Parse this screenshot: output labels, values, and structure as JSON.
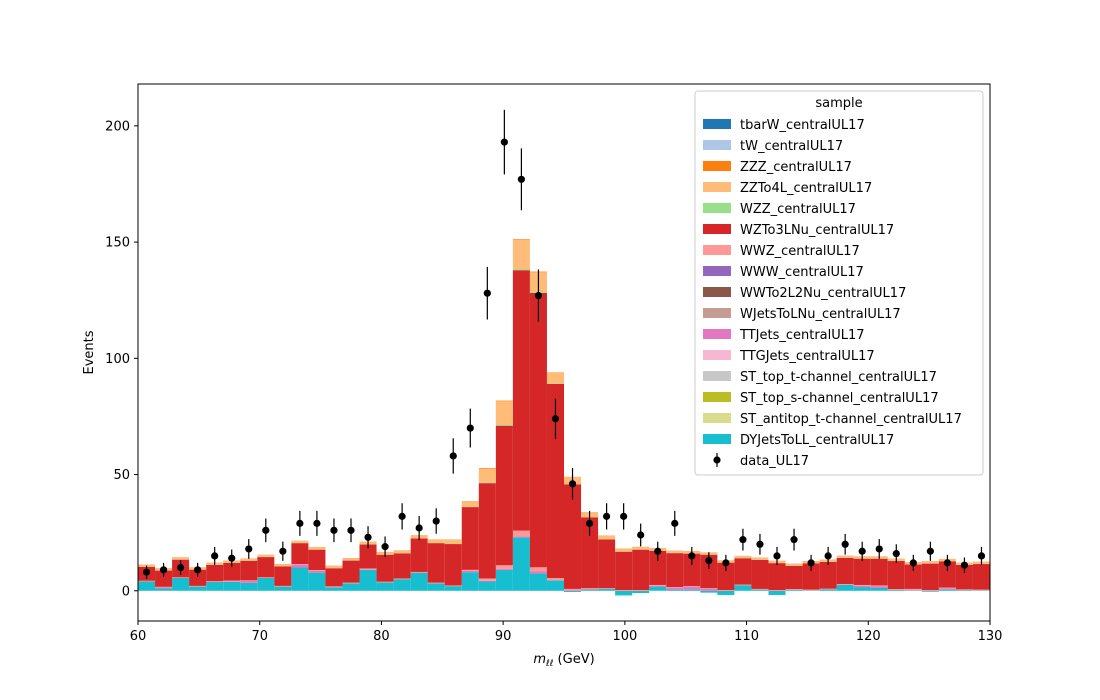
{
  "chart_data": {
    "type": "bar",
    "stacked": true,
    "xlabel": "m_ll (GeV)",
    "xlabel_main": "m",
    "xlabel_sub": "ℓℓ",
    "xlabel_unit": " (GeV)",
    "ylabel": "Events",
    "xlim": [
      60,
      130
    ],
    "ylim": [
      -13,
      218
    ],
    "xticks": [
      60,
      70,
      80,
      90,
      100,
      110,
      120,
      130
    ],
    "yticks": [
      0,
      50,
      100,
      150,
      200
    ],
    "legend": {
      "title": "sample",
      "placement": "top-right"
    },
    "bin_edges": [
      60.0,
      61.4,
      62.8,
      64.2,
      65.6,
      67.0,
      68.4,
      69.8,
      71.2,
      72.6,
      74.0,
      75.4,
      76.8,
      78.2,
      79.6,
      81.0,
      82.4,
      83.8,
      85.2,
      86.6,
      88.0,
      89.4,
      90.8,
      92.2,
      93.6,
      95.0,
      96.4,
      97.8,
      99.2,
      100.6,
      102.0,
      103.4,
      104.8,
      106.2,
      107.6,
      109.0,
      110.4,
      111.8,
      113.2,
      114.6,
      116.0,
      117.4,
      118.8,
      120.2,
      121.6,
      123.0,
      124.4,
      125.8,
      127.2,
      128.6,
      130.0
    ],
    "series": [
      {
        "name": "tbarW_centralUL17",
        "color": "#1f77b4",
        "values": [
          0,
          0,
          0,
          0,
          0,
          0,
          0,
          0,
          0,
          0,
          0,
          0,
          0,
          0,
          0,
          0,
          0,
          0,
          0,
          0,
          0,
          0,
          0,
          0,
          0,
          0,
          0,
          0,
          0,
          0,
          0,
          0,
          0,
          0,
          0,
          0,
          0,
          0,
          0,
          0,
          0,
          0,
          0,
          0,
          0,
          0,
          0,
          0,
          0,
          0
        ]
      },
      {
        "name": "tW_centralUL17",
        "color": "#aec7e8",
        "values": [
          0,
          0,
          0,
          0,
          0,
          0,
          0,
          0,
          0,
          0,
          0,
          0,
          0,
          0,
          0,
          0,
          0,
          0,
          0,
          0,
          0,
          0,
          0,
          0,
          0,
          0,
          0,
          0,
          0,
          0,
          0,
          0,
          0,
          0,
          0,
          0,
          0,
          0,
          0,
          0,
          0,
          0,
          0,
          0,
          0,
          0,
          0,
          0,
          0,
          0
        ]
      },
      {
        "name": "ZZZ_centralUL17",
        "color": "#ff7f0e",
        "values": [
          0.1,
          0.1,
          0.1,
          0.1,
          0.1,
          0.1,
          0.1,
          0.1,
          0.1,
          0.1,
          0.1,
          0.1,
          0.1,
          0.1,
          0.1,
          0.1,
          0.1,
          0.1,
          0.1,
          0.1,
          0.2,
          0.3,
          0.3,
          0.3,
          0.2,
          0.1,
          0.1,
          0.1,
          0.1,
          0.1,
          0.1,
          0.1,
          0.1,
          0.1,
          0.1,
          0.1,
          0.1,
          0.1,
          0.1,
          0.1,
          0.1,
          0.1,
          0.1,
          0.1,
          0.1,
          0.1,
          0.1,
          0.1,
          0.1,
          0.1
        ]
      },
      {
        "name": "ZZTo4L_centralUL17",
        "color": "#ffbb78",
        "values": [
          0.8,
          0.8,
          0.8,
          0.8,
          0.8,
          0.8,
          0.8,
          0.8,
          0.8,
          0.8,
          0.9,
          0.9,
          0.9,
          1.0,
          1.0,
          1.1,
          1.2,
          1.4,
          1.8,
          2.4,
          6.0,
          10.0,
          12.5,
          8.5,
          4.5,
          3.0,
          2.0,
          1.5,
          1.2,
          1.0,
          1.0,
          0.9,
          0.9,
          0.8,
          0.8,
          0.8,
          0.8,
          0.8,
          0.8,
          0.8,
          0.8,
          0.8,
          0.8,
          0.8,
          0.8,
          0.8,
          0.8,
          0.8,
          0.8,
          0.8
        ]
      },
      {
        "name": "WZZ_centralUL17",
        "color": "#98df8a",
        "values": [
          0.1,
          0.1,
          0.1,
          0.1,
          0.1,
          0.1,
          0.1,
          0.1,
          0.1,
          0.1,
          0.1,
          0.1,
          0.1,
          0.1,
          0.1,
          0.1,
          0.1,
          0.1,
          0.1,
          0.1,
          0.3,
          0.5,
          0.5,
          0.4,
          0.2,
          0.1,
          0.1,
          0.1,
          0.1,
          0.1,
          0.1,
          0.1,
          0.1,
          0.1,
          0.1,
          0.1,
          0.1,
          0.1,
          0.1,
          0.1,
          0.1,
          0.1,
          0.1,
          0.1,
          0.1,
          0.1,
          0.1,
          0.1,
          0.1,
          0.1
        ]
      },
      {
        "name": "WZTo3LNu_centralUL17",
        "color": "#d62728",
        "values": [
          6.0,
          7.0,
          7.6,
          7.0,
          7.0,
          7.6,
          8.4,
          8.7,
          8.4,
          9.0,
          8.8,
          7.8,
          9.5,
          10.3,
          11.6,
          10.8,
          14.4,
          17.0,
          17.8,
          27.0,
          41.0,
          60.0,
          112.0,
          118.0,
          83.5,
          45.0,
          30.5,
          21.0,
          16.5,
          17.4,
          14.7,
          14.6,
          14.0,
          14.4,
          11.8,
          11.3,
          12.5,
          11.6,
          10.0,
          11.3,
          11.5,
          11.2,
          11.3,
          11.5,
          12.1,
          10.5,
          11.4,
          11.3,
          10.5,
          11.0
        ]
      },
      {
        "name": "WWZ_centralUL17",
        "color": "#ff9896",
        "values": [
          0.3,
          0.3,
          0.3,
          0.3,
          0.3,
          0.3,
          0.3,
          0.3,
          0.3,
          0.3,
          0.3,
          0.4,
          0.3,
          0.3,
          0.3,
          0.3,
          0.3,
          0.3,
          0.3,
          0.4,
          1.0,
          1.5,
          2.5,
          1.8,
          1.0,
          0.5,
          0.3,
          0.3,
          0.3,
          0.3,
          0.3,
          0.3,
          0.3,
          0.3,
          0.3,
          0.3,
          0.3,
          0.3,
          0.3,
          0.3,
          0.3,
          0.3,
          0.3,
          0.3,
          0.3,
          0.3,
          0.3,
          0.3,
          0.3,
          0.3
        ]
      },
      {
        "name": "WWW_centralUL17",
        "color": "#9467bd",
        "values": [
          0,
          0,
          0,
          0,
          0,
          0,
          0,
          0,
          0,
          0,
          0,
          0,
          0,
          0,
          0,
          0,
          0,
          0,
          0,
          0,
          0,
          0,
          0,
          0,
          0,
          0,
          0,
          0,
          0,
          0,
          0,
          0,
          0,
          0,
          0,
          0,
          0,
          0,
          0,
          0,
          0,
          0,
          0,
          0,
          0,
          0,
          0,
          0,
          0,
          0
        ]
      },
      {
        "name": "WWTo2L2Nu_centralUL17",
        "color": "#8c564b",
        "values": [
          0,
          0,
          0,
          0,
          0,
          0,
          0,
          0,
          0,
          0,
          0,
          0,
          0,
          0,
          0,
          0,
          0,
          0,
          0,
          0,
          0,
          0,
          0,
          0,
          0,
          0,
          0,
          0,
          0,
          0,
          0,
          0,
          0,
          0,
          0,
          0,
          0,
          0,
          0,
          0,
          0,
          0,
          0,
          0,
          0,
          0,
          0,
          0,
          0,
          0
        ]
      },
      {
        "name": "WJetsToLNu_centralUL17",
        "color": "#c49c94",
        "values": [
          0,
          0,
          0,
          0,
          0,
          0,
          0,
          0,
          0,
          0,
          0,
          0,
          0,
          0,
          0,
          0,
          0,
          0,
          0,
          0,
          0,
          0,
          0,
          0,
          0,
          0,
          0,
          0,
          0,
          0,
          0,
          0,
          0,
          0,
          0,
          0,
          0,
          0,
          0,
          0,
          0,
          0,
          0,
          0,
          0,
          0,
          0,
          0,
          0,
          0
        ]
      },
      {
        "name": "TTJets_centralUL17",
        "color": "#e377c2",
        "values": [
          0,
          0.4,
          0,
          0,
          0,
          0.3,
          0.8,
          0,
          0,
          1.2,
          0.8,
          0,
          0,
          0.3,
          0,
          0,
          0,
          0,
          0,
          0.6,
          0.3,
          0.5,
          0.4,
          0.8,
          0,
          0.3,
          0.3,
          0,
          0,
          0,
          0.4,
          0.8,
          1.2,
          0.8,
          0,
          0,
          0,
          0,
          0,
          0,
          0,
          0,
          0.6,
          0.8,
          0,
          0.3,
          0,
          0.6,
          0,
          0
        ]
      },
      {
        "name": "TTGJets_centralUL17",
        "color": "#f7b6d2",
        "values": [
          0,
          0,
          0,
          0,
          0,
          0,
          0,
          0,
          0,
          0,
          0,
          0,
          0,
          0,
          0,
          0,
          0,
          0,
          0,
          0,
          0,
          0,
          0,
          0,
          0,
          0,
          0,
          0,
          0,
          0,
          0,
          0,
          0,
          0,
          0,
          0,
          0,
          0,
          0,
          0,
          0,
          0,
          0,
          0,
          0,
          0,
          0,
          0,
          0,
          0
        ]
      },
      {
        "name": "ST_top_t-channel_centralUL17",
        "color": "#c7c7c7",
        "values": [
          0,
          0,
          0,
          0,
          0,
          0,
          0,
          0,
          0,
          0,
          0,
          0,
          0,
          0,
          0,
          0,
          0,
          0,
          0,
          0,
          0,
          0,
          0,
          0,
          0,
          0,
          0,
          0,
          0,
          0,
          0,
          0,
          0,
          0,
          0,
          0,
          0,
          0,
          0,
          0,
          0,
          0,
          0,
          0,
          0,
          0,
          0,
          0,
          0,
          0
        ]
      },
      {
        "name": "ST_top_s-channel_centralUL17",
        "color": "#bcbd22",
        "values": [
          0,
          0,
          0,
          0,
          0,
          0,
          0,
          0,
          0,
          0,
          0,
          0,
          0,
          0,
          0,
          0,
          0,
          0,
          0,
          0,
          0,
          0,
          0,
          0,
          0,
          0,
          0,
          0,
          0,
          0,
          0,
          0,
          0,
          0,
          0,
          0,
          0,
          0,
          0,
          0,
          0,
          0,
          0,
          0,
          0,
          0,
          0,
          0,
          0,
          0
        ]
      },
      {
        "name": "ST_antitop_t-channel_centralUL17",
        "color": "#dbdb8d",
        "values": [
          0,
          0,
          0,
          0,
          0,
          0,
          0,
          0,
          0,
          0,
          0,
          0,
          0,
          0,
          0,
          0,
          0,
          0,
          0,
          0,
          0,
          0,
          0,
          0,
          0,
          0,
          0,
          0,
          0,
          0,
          0,
          0,
          0,
          0,
          0,
          0,
          0,
          0,
          0,
          0,
          0,
          0,
          0,
          0,
          0,
          0,
          0,
          0,
          0,
          0
        ]
      },
      {
        "name": "DYJetsToLL_centralUL17",
        "color": "#17becf",
        "values": [
          4.0,
          1.0,
          5.5,
          1.8,
          3.8,
          3.8,
          3.4,
          5.5,
          1.8,
          10.0,
          7.8,
          1.5,
          3.2,
          9.0,
          3.6,
          5.0,
          7.8,
          3.2,
          2.0,
          8.0,
          4.0,
          9.0,
          23.0,
          7.5,
          4.5,
          -0.5,
          0.5,
          0.8,
          -2.0,
          -1.0,
          1.8,
          0.5,
          0.5,
          -0.8,
          -1.8,
          2.4,
          0.5,
          -1.8,
          0.4,
          0.2,
          0.6,
          2.6,
          1.6,
          1.2,
          0.4,
          0.2,
          -0.4,
          0.5,
          0.3,
          0.2
        ]
      }
    ],
    "data_series": {
      "name": "data_UL17",
      "color": "#000000",
      "x": [
        60.7,
        62.1,
        63.5,
        64.9,
        66.3,
        67.7,
        69.1,
        70.5,
        71.9,
        73.3,
        74.7,
        76.1,
        77.5,
        78.9,
        80.3,
        81.7,
        83.1,
        84.5,
        85.9,
        87.3,
        88.7,
        90.1,
        91.5,
        92.9,
        94.3,
        95.7,
        97.1,
        98.5,
        99.9,
        101.3,
        102.7,
        104.1,
        105.5,
        106.9,
        108.3,
        109.7,
        111.1,
        112.5,
        113.9,
        115.3,
        116.7,
        118.1,
        119.5,
        120.9,
        122.3,
        123.7,
        125.1,
        126.5,
        127.9,
        129.3
      ],
      "y": [
        8,
        9,
        10,
        9,
        15,
        14,
        18,
        26,
        17,
        29,
        29,
        26,
        26,
        23,
        19,
        32,
        27,
        30,
        58,
        70,
        128,
        193,
        177,
        127,
        74,
        46,
        29,
        32,
        32,
        24,
        17,
        29,
        15,
        13,
        12,
        22,
        20,
        15,
        22,
        12,
        15,
        20,
        17,
        18,
        16,
        12,
        17,
        12,
        11,
        15
      ]
    }
  }
}
